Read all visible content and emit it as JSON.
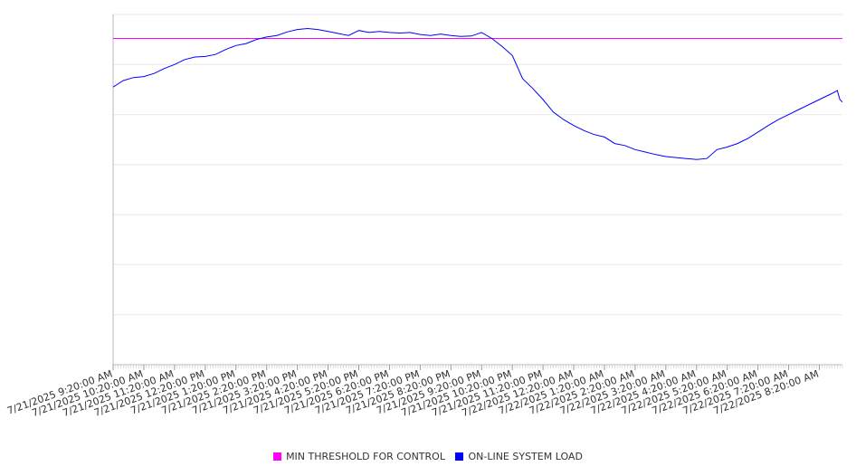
{
  "chart_data": {
    "type": "line",
    "title": "",
    "xlabel": "",
    "ylabel": "",
    "grid": true,
    "legend_position": "bottom-center",
    "x_range": [
      "2025-07-21T09:20",
      "2025-07-22T09:05"
    ],
    "y_range": [
      0,
      7
    ],
    "x_tick_labels": [
      "7/21/2025 9:20:00 AM",
      "7/21/2025 10:20:00 AM",
      "7/21/2025 11:20:00 AM",
      "7/21/2025 12:20:00 PM",
      "7/21/2025 1:20:00 PM",
      "7/21/2025 2:20:00 PM",
      "7/21/2025 3:20:00 PM",
      "7/21/2025 4:20:00 PM",
      "7/21/2025 5:20:00 PM",
      "7/21/2025 6:20:00 PM",
      "7/21/2025 7:20:00 PM",
      "7/21/2025 8:20:00 PM",
      "7/21/2025 9:20:00 PM",
      "7/21/2025 10:20:00 PM",
      "7/21/2025 11:20:00 PM",
      "7/22/2025 12:20:00 AM",
      "7/22/2025 1:20:00 AM",
      "7/22/2025 2:20:00 AM",
      "7/22/2025 3:20:00 AM",
      "7/22/2025 4:20:00 AM",
      "7/22/2025 5:20:00 AM",
      "7/22/2025 6:20:00 AM",
      "7/22/2025 7:20:00 AM",
      "7/22/2025 8:20:00 AM"
    ],
    "series": [
      {
        "name": "MIN THRESHOLD FOR CONTROL",
        "color": "#ff00ff",
        "x": [
          "2025-07-21T09:20",
          "2025-07-22T09:05"
        ],
        "y": [
          6.52,
          6.52
        ]
      },
      {
        "name": "ON-LINE SYSTEM LOAD",
        "color": "#0000ff",
        "x": [
          "2025-07-21T09:20",
          "2025-07-21T09:40",
          "2025-07-21T10:00",
          "2025-07-21T10:20",
          "2025-07-21T10:40",
          "2025-07-21T11:00",
          "2025-07-21T11:20",
          "2025-07-21T11:40",
          "2025-07-21T12:00",
          "2025-07-21T12:20",
          "2025-07-21T12:40",
          "2025-07-21T13:00",
          "2025-07-21T13:20",
          "2025-07-21T13:40",
          "2025-07-21T14:00",
          "2025-07-21T14:20",
          "2025-07-21T14:40",
          "2025-07-21T15:00",
          "2025-07-21T15:20",
          "2025-07-21T15:40",
          "2025-07-21T16:00",
          "2025-07-21T16:20",
          "2025-07-21T16:40",
          "2025-07-21T17:00",
          "2025-07-21T17:20",
          "2025-07-21T17:40",
          "2025-07-21T18:00",
          "2025-07-21T18:20",
          "2025-07-21T18:40",
          "2025-07-21T19:00",
          "2025-07-21T19:20",
          "2025-07-21T19:40",
          "2025-07-21T20:00",
          "2025-07-21T20:20",
          "2025-07-21T20:40",
          "2025-07-21T21:00",
          "2025-07-21T21:20",
          "2025-07-21T21:40",
          "2025-07-21T22:00",
          "2025-07-21T22:20",
          "2025-07-21T22:40",
          "2025-07-21T23:00",
          "2025-07-21T23:20",
          "2025-07-21T23:40",
          "2025-07-22T00:00",
          "2025-07-22T00:20",
          "2025-07-22T00:40",
          "2025-07-22T01:00",
          "2025-07-22T01:20",
          "2025-07-22T01:40",
          "2025-07-22T02:00",
          "2025-07-22T02:20",
          "2025-07-22T02:40",
          "2025-07-22T03:00",
          "2025-07-22T03:20",
          "2025-07-22T03:40",
          "2025-07-22T04:00",
          "2025-07-22T04:20",
          "2025-07-22T04:40",
          "2025-07-22T05:00",
          "2025-07-22T05:20",
          "2025-07-22T05:40",
          "2025-07-22T06:00",
          "2025-07-22T06:20",
          "2025-07-22T06:40",
          "2025-07-22T07:00",
          "2025-07-22T07:20",
          "2025-07-22T07:40",
          "2025-07-22T08:00",
          "2025-07-22T08:20",
          "2025-07-22T08:40",
          "2025-07-22T08:50",
          "2025-07-22T08:55",
          "2025-07-22T09:00",
          "2025-07-22T09:05"
        ],
        "y": [
          5.55,
          5.68,
          5.74,
          5.76,
          5.82,
          5.92,
          6.0,
          6.1,
          6.15,
          6.16,
          6.2,
          6.3,
          6.38,
          6.42,
          6.5,
          6.55,
          6.58,
          6.65,
          6.7,
          6.72,
          6.7,
          6.66,
          6.62,
          6.58,
          6.68,
          6.64,
          6.66,
          6.64,
          6.63,
          6.64,
          6.6,
          6.58,
          6.61,
          6.58,
          6.56,
          6.57,
          6.64,
          6.52,
          6.36,
          6.18,
          5.72,
          5.52,
          5.3,
          5.05,
          4.9,
          4.78,
          4.68,
          4.6,
          4.55,
          4.42,
          4.38,
          4.3,
          4.25,
          4.2,
          4.16,
          4.14,
          4.12,
          4.1,
          4.12,
          4.3,
          4.35,
          4.42,
          4.52,
          4.65,
          4.78,
          4.9,
          5.0,
          5.1,
          5.2,
          5.3,
          5.4,
          5.45,
          5.48,
          5.3,
          5.25
        ]
      }
    ]
  }
}
